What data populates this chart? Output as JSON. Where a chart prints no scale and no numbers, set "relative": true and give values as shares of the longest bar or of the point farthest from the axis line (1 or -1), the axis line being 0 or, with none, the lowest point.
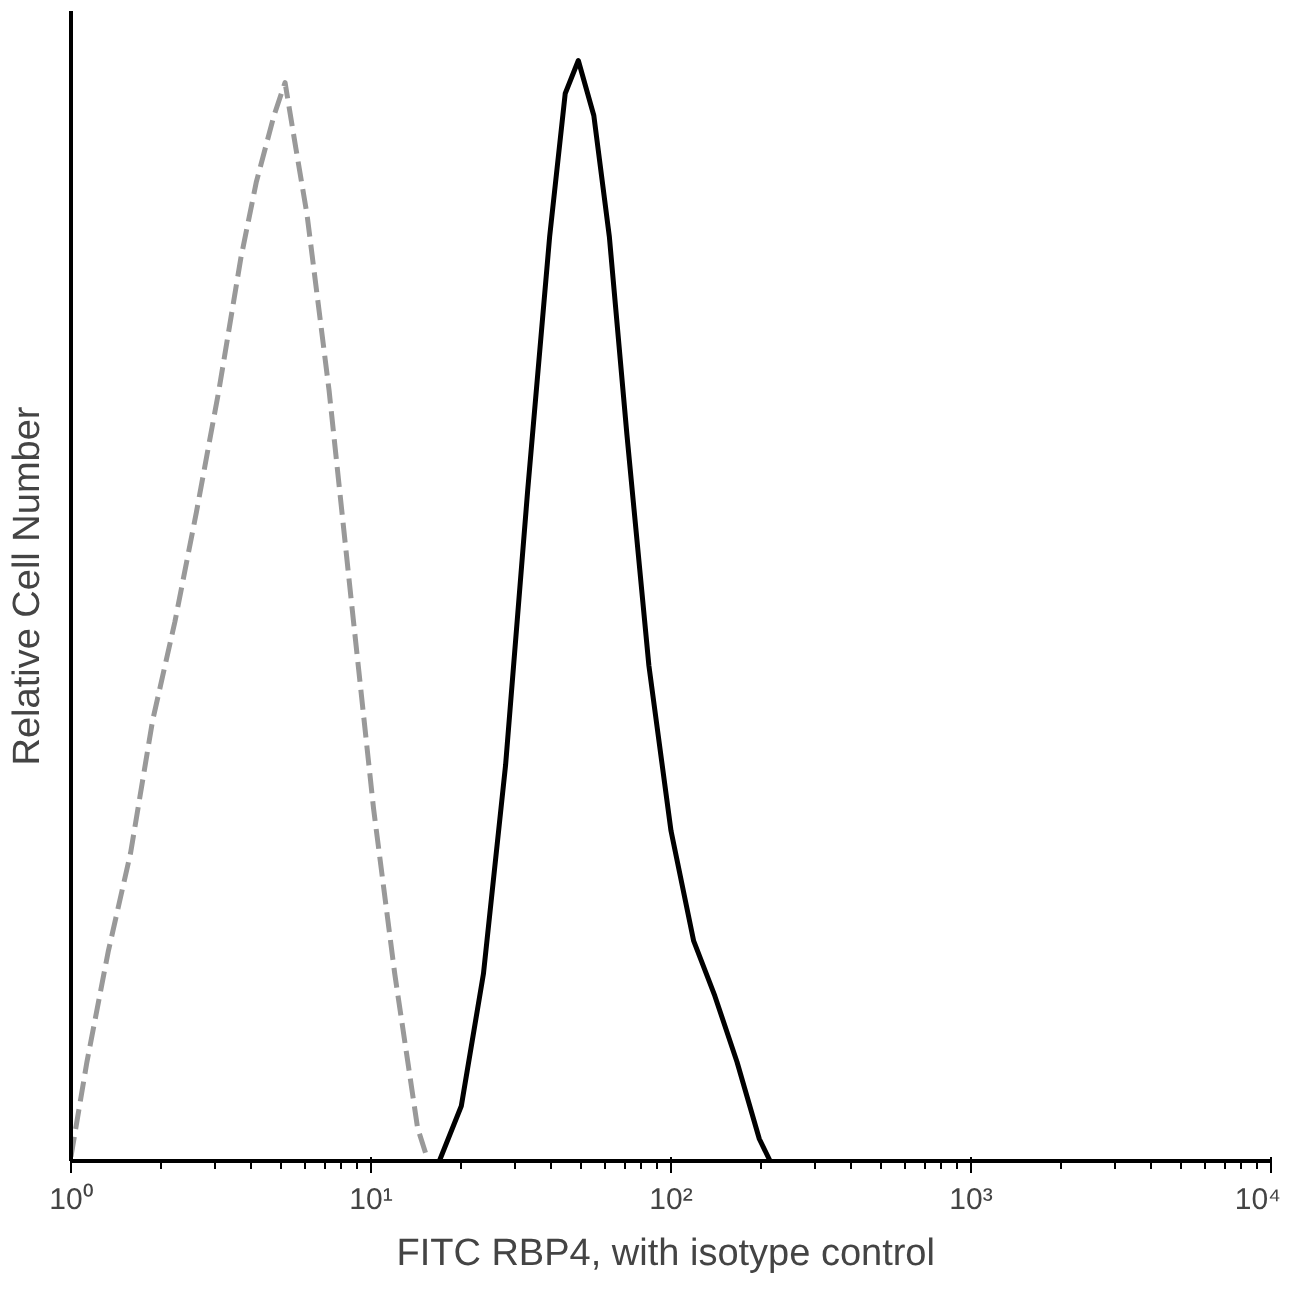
{
  "chart_data": {
    "type": "line",
    "relative": true,
    "xlabel": "FITC RBP4,  with isotype control",
    "ylabel": "Relative Cell Number",
    "log": "x",
    "grid": false,
    "xlim": [
      1,
      10000
    ],
    "xticks": [
      {
        "value": 1,
        "label": "10⁰"
      },
      {
        "value": 10,
        "label": "10¹"
      },
      {
        "value": 100,
        "label": "10²"
      },
      {
        "value": 1000,
        "label": "10³"
      },
      {
        "value": 10000,
        "label": "10⁴"
      }
    ],
    "series": [
      {
        "color": "#999999",
        "line_style": "dashed",
        "x": [
          1.0,
          1.13,
          1.33,
          1.58,
          1.87,
          2.22,
          2.62,
          3.11,
          3.68,
          4.15,
          4.75,
          5.17,
          5.62,
          6.12,
          7.25,
          8.59,
          10.2,
          12.0,
          14.3,
          15.5
        ],
        "values": [
          0.004,
          0.09,
          0.19,
          0.28,
          0.4,
          0.49,
          0.59,
          0.7,
          0.82,
          0.89,
          0.95,
          0.98,
          0.92,
          0.86,
          0.7,
          0.51,
          0.32,
          0.17,
          0.03,
          0
        ]
      },
      {
        "color": "#000000",
        "line_style": "solid",
        "x": [
          16.9,
          20.0,
          23.7,
          28.1,
          33.3,
          39.4,
          44.4,
          49.1,
          55.3,
          62.3,
          71.3,
          84.4,
          100,
          119,
          140,
          166,
          197,
          214
        ],
        "values": [
          0,
          0.05,
          0.17,
          0.36,
          0.61,
          0.84,
          0.97,
          1.0,
          0.95,
          0.84,
          0.66,
          0.45,
          0.3,
          0.2,
          0.15,
          0.09,
          0.02,
          0
        ]
      }
    ]
  }
}
